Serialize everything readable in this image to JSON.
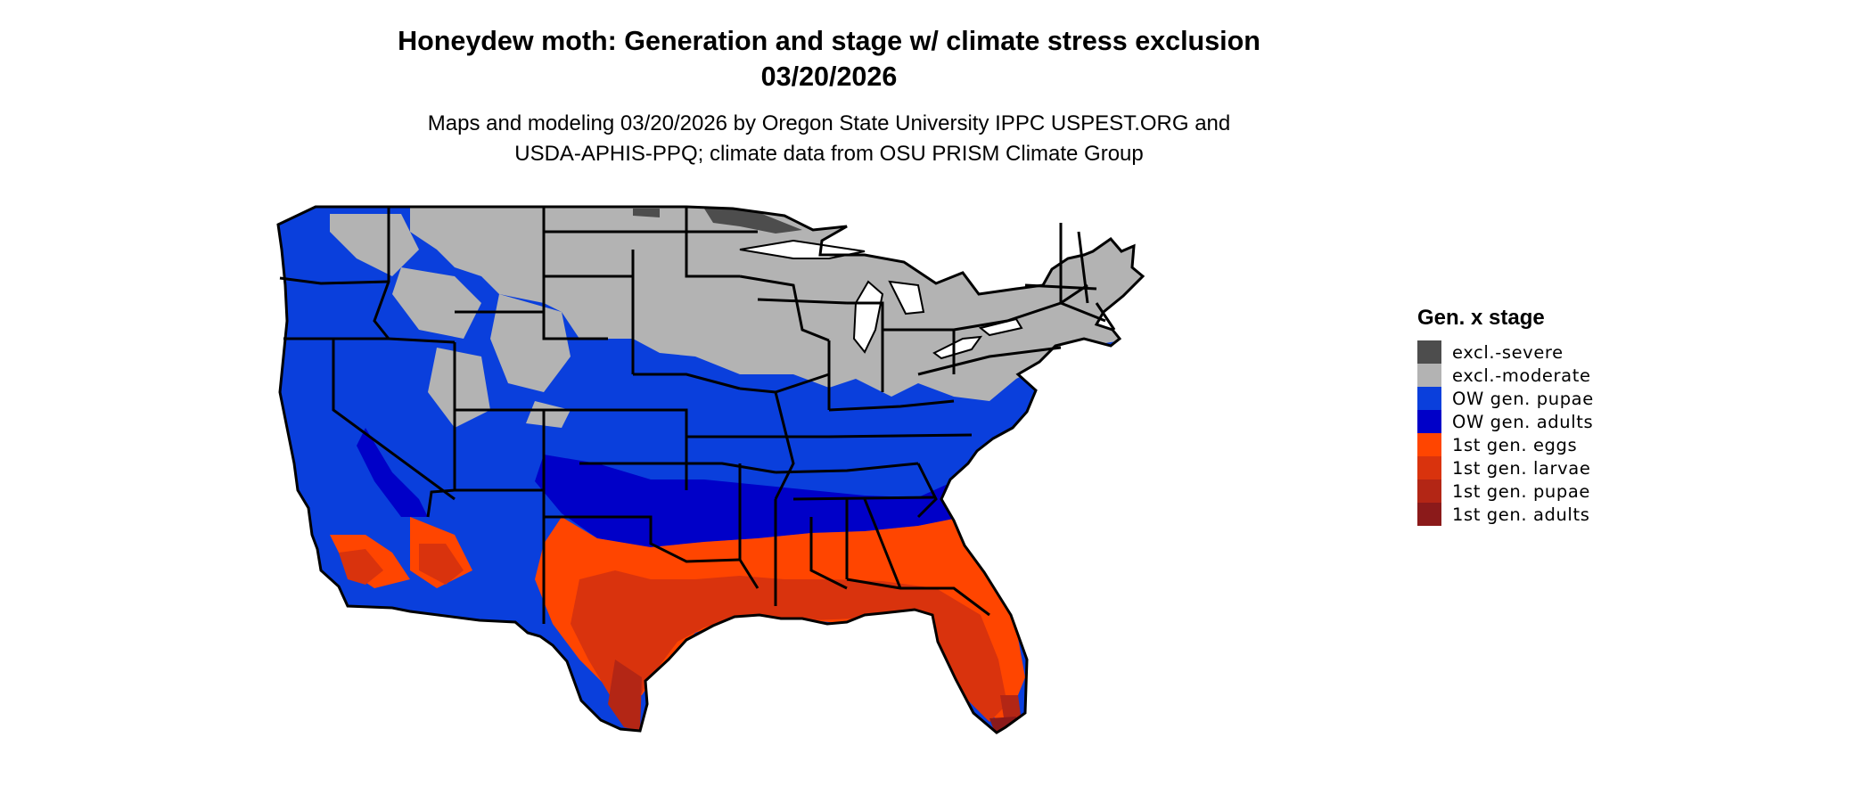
{
  "title_line1": "Honeydew moth: Generation and stage w/ climate stress exclusion",
  "title_line2": "03/20/2026",
  "subtitle_line1": "Maps and modeling 03/20/2026 by Oregon State University IPPC USPEST.ORG and",
  "subtitle_line2": "USDA-APHIS-PPQ; climate data from OSU PRISM Climate Group",
  "legend": {
    "title": "Gen. x stage",
    "items": [
      {
        "label": "excl.-severe",
        "color": "#4d4d4d"
      },
      {
        "label": "excl.-moderate",
        "color": "#b3b3b3"
      },
      {
        "label": "OW gen. pupae",
        "color": "#0a3fdc"
      },
      {
        "label": "OW gen. adults",
        "color": "#0000c8"
      },
      {
        "label": "1st gen. eggs",
        "color": "#ff4500"
      },
      {
        "label": "1st gen. larvae",
        "color": "#d9330d"
      },
      {
        "label": "1st gen. pupae",
        "color": "#b32615"
      },
      {
        "label": "1st gen. adults",
        "color": "#8b1a1a"
      }
    ]
  },
  "map": {
    "region": "contiguous-united-states",
    "zones": [
      {
        "name": "excl.-severe",
        "color": "#4d4d4d"
      },
      {
        "name": "excl.-moderate",
        "color": "#b3b3b3"
      },
      {
        "name": "OW gen. pupae",
        "color": "#0a3fdc"
      },
      {
        "name": "OW gen. adults",
        "color": "#0000c8"
      },
      {
        "name": "1st gen. eggs",
        "color": "#ff4500"
      },
      {
        "name": "1st gen. larvae",
        "color": "#d9330d"
      },
      {
        "name": "1st gen. pupae",
        "color": "#b32615"
      },
      {
        "name": "1st gen. adults",
        "color": "#8b1a1a"
      }
    ]
  }
}
